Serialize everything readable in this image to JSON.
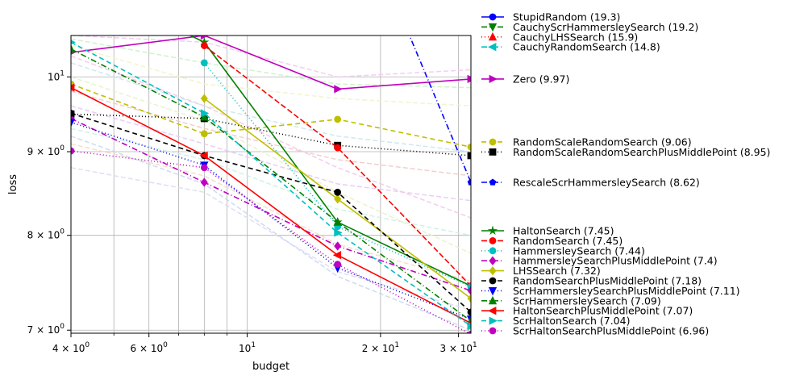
{
  "chart_data": {
    "type": "line",
    "xlabel": "budget",
    "ylabel": "loss",
    "xscale": "log",
    "yscale": "log",
    "xlim": [
      4,
      32
    ],
    "ylim": [
      6.97,
      10.6
    ],
    "grid": true,
    "x": [
      4,
      8,
      16,
      32
    ],
    "x_ticks": [
      {
        "value": 4,
        "label": "4 × 10^0",
        "mant": "4",
        "exp": "0"
      },
      {
        "value": 6,
        "label": "6 × 10^0",
        "mant": "6",
        "exp": "0"
      },
      {
        "value": 10,
        "label": "10^1",
        "mant": "",
        "exp": "1"
      },
      {
        "value": 20,
        "label": "2 × 10^1",
        "mant": "2",
        "exp": "1"
      },
      {
        "value": 30,
        "label": "3 × 10^1",
        "mant": "3",
        "exp": "1"
      }
    ],
    "x_minor_ticks": [
      5,
      7,
      8,
      9
    ],
    "y_ticks": [
      {
        "value": 7,
        "label": "7 × 10^0",
        "mant": "7",
        "exp": "0"
      },
      {
        "value": 8,
        "label": "8 × 10^0",
        "mant": "8",
        "exp": "0"
      },
      {
        "value": 9,
        "label": "9 × 10^0",
        "mant": "9",
        "exp": "0"
      },
      {
        "value": 10,
        "label": "10^1",
        "mant": "",
        "exp": "1"
      }
    ],
    "series": [
      {
        "name": "StupidRandom (19.3)",
        "color": "#0000ff",
        "dash": "",
        "marker": "circle",
        "values": [
          null,
          null,
          null,
          null
        ]
      },
      {
        "name": "CauchyScrHammersleySearch (19.2)",
        "color": "#008000",
        "dash": "7,3",
        "marker": "triangle-down",
        "values": [
          null,
          null,
          null,
          null
        ]
      },
      {
        "name": "CauchyLHSSearch (15.9)",
        "color": "#ff0000",
        "dash": "1,3",
        "marker": "triangle-up",
        "values": [
          null,
          null,
          null,
          null
        ]
      },
      {
        "name": "CauchyRandomSearch (14.8)",
        "color": "#00bfbf",
        "dash": "7,3,1,3",
        "marker": "triangle-left",
        "values": [
          null,
          null,
          null,
          null
        ]
      },
      {
        "name": "Zero (9.97)",
        "color": "#bf00bf",
        "dash": "",
        "marker": "triangle-right",
        "values": [
          10.35,
          10.6,
          9.83,
          9.97
        ]
      },
      {
        "name": "RandomScaleRandomSearch (9.06)",
        "color": "#bfbf00",
        "dash": "6,4",
        "marker": "circle",
        "values": [
          9.9,
          9.23,
          9.42,
          9.06
        ]
      },
      {
        "name": "RandomScaleRandomSearchPlusMiddlePoint (8.95)",
        "color": "#000000",
        "dash": "1,3",
        "marker": "square",
        "values": [
          9.49,
          9.43,
          9.08,
          8.95
        ]
      },
      {
        "name": "RescaleScrHammersleySearch (8.62)",
        "color": "#0000ff",
        "dash": "7,3,1,3",
        "marker": "pentagon",
        "values": [
          null,
          null,
          13.5,
          8.62
        ]
      },
      {
        "name": "HaltonSearch (7.45)",
        "color": "#008000",
        "dash": "",
        "marker": "star",
        "values": [
          11.5,
          10.5,
          8.15,
          7.45
        ]
      },
      {
        "name": "RandomSearch (7.45)",
        "color": "#ff0000",
        "dash": "7,3",
        "marker": "circle",
        "values": [
          null,
          10.45,
          9.05,
          7.45
        ]
      },
      {
        "name": "HammersleySearch (7.44)",
        "color": "#00bfbf",
        "dash": "1,3",
        "marker": "circle",
        "values": [
          null,
          10.2,
          8.1,
          7.44
        ]
      },
      {
        "name": "HammersleySearchPlusMiddlePoint (7.4)",
        "color": "#bf00bf",
        "dash": "7,3,1,3",
        "marker": "diamond",
        "values": [
          9.43,
          8.62,
          7.88,
          7.4
        ]
      },
      {
        "name": "LHSSearch (7.32)",
        "color": "#bfbf00",
        "dash": "",
        "marker": "diamond",
        "values": [
          null,
          9.7,
          8.42,
          7.32
        ]
      },
      {
        "name": "RandomSearchPlusMiddlePoint (7.18)",
        "color": "#000000",
        "dash": "6,4",
        "marker": "circle",
        "values": [
          9.5,
          8.95,
          8.5,
          7.18
        ]
      },
      {
        "name": "ScrHammersleySearchPlusMiddlePoint (7.11)",
        "color": "#0000ff",
        "dash": "1,3",
        "marker": "triangle-down",
        "values": [
          9.38,
          8.83,
          7.64,
          7.11
        ]
      },
      {
        "name": "ScrHammersleySearch (7.09)",
        "color": "#008000",
        "dash": "7,3,1,3",
        "marker": "triangle-up",
        "values": [
          10.4,
          9.45,
          8.15,
          7.09
        ]
      },
      {
        "name": "HaltonSearchPlusMiddlePoint (7.07)",
        "color": "#ff0000",
        "dash": "",
        "marker": "triangle-left",
        "values": [
          9.85,
          8.95,
          7.78,
          7.07
        ]
      },
      {
        "name": "ScrHaltonSearch (7.04)",
        "color": "#00bfbf",
        "dash": "6,4",
        "marker": "triangle-right",
        "values": [
          10.5,
          9.5,
          8.03,
          7.04
        ]
      },
      {
        "name": "ScrHaltonSearchPlusMiddlePoint (6.96)",
        "color": "#bf00bf",
        "dash": "1,3",
        "marker": "circle",
        "values": [
          9.01,
          8.8,
          7.68,
          6.96
        ]
      }
    ],
    "legend_placement": "outside-right",
    "legend_groups": [
      {
        "anchor_value": null,
        "items": [
          0,
          1,
          2,
          3
        ]
      },
      {
        "anchor_value": 9.97,
        "items": [
          4
        ]
      },
      {
        "anchor_value": 9.06,
        "items": [
          5,
          6
        ]
      },
      {
        "anchor_value": 8.62,
        "items": [
          7
        ]
      },
      {
        "anchor_value": null,
        "items": [
          8,
          9,
          10,
          11,
          12,
          13,
          14,
          15,
          16,
          17,
          18
        ]
      }
    ]
  }
}
